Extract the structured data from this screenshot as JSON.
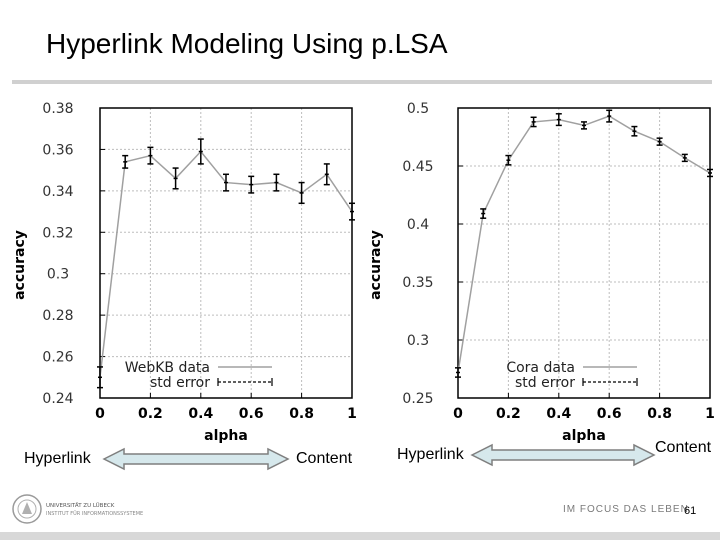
{
  "slide": {
    "title": "Hyperlink Modeling Using p.LSA",
    "page_number": "61",
    "footer_motto": "IM FOCUS DAS LEBEN",
    "logo_text_1": "UNIVERSITÄT ZU LÜBECK",
    "logo_text_2": "INSTITUT FÜR INFORMATIONSSYSTEME"
  },
  "arrows": [
    {
      "left_label": "Hyperlink",
      "right_label": "Content"
    },
    {
      "left_label": "Hyperlink",
      "right_label": "Content"
    }
  ],
  "colors": {
    "arrow_fill": "#d6e8ec",
    "arrow_stroke": "#7f7f7f",
    "grid": "#bdbdbd",
    "data_line": "#a0a0a0",
    "errbar": "#000000"
  },
  "chart_data": [
    {
      "type": "line",
      "xlabel": "alpha",
      "ylabel": "accuracy",
      "xlim": [
        0,
        1
      ],
      "ylim": [
        0.24,
        0.38
      ],
      "xticks": [
        0,
        0.2,
        0.4,
        0.6,
        0.8,
        1
      ],
      "yticks": [
        0.24,
        0.26,
        0.28,
        0.3,
        0.32,
        0.34,
        0.36,
        0.38
      ],
      "xticklabels": [
        "0",
        "0.2",
        "0.4",
        "0.6",
        "0.8",
        "1"
      ],
      "yticklabels": [
        "0.24",
        "0.26",
        "0.28",
        "0.3",
        "0.32",
        "0.34",
        "0.36",
        "0.38"
      ],
      "grid": true,
      "legend_position": "bottom-right",
      "series": [
        {
          "name": "WebKB data",
          "x": [
            0,
            0.1,
            0.2,
            0.3,
            0.4,
            0.5,
            0.6,
            0.7,
            0.8,
            0.9,
            1.0
          ],
          "y": [
            0.25,
            0.354,
            0.357,
            0.346,
            0.359,
            0.344,
            0.343,
            0.344,
            0.339,
            0.348,
            0.33
          ]
        },
        {
          "name": "std error",
          "x": [
            0,
            0.1,
            0.2,
            0.3,
            0.4,
            0.5,
            0.6,
            0.7,
            0.8,
            0.9,
            1.0
          ],
          "y": [
            0.25,
            0.354,
            0.357,
            0.346,
            0.359,
            0.344,
            0.343,
            0.344,
            0.339,
            0.348,
            0.33
          ],
          "err": [
            0.005,
            0.003,
            0.004,
            0.005,
            0.006,
            0.004,
            0.004,
            0.004,
            0.005,
            0.005,
            0.004
          ]
        }
      ]
    },
    {
      "type": "line",
      "xlabel": "alpha",
      "ylabel": "accuracy",
      "xlim": [
        0,
        1
      ],
      "ylim": [
        0.25,
        0.5
      ],
      "xticks": [
        0,
        0.2,
        0.4,
        0.6,
        0.8,
        1
      ],
      "yticks": [
        0.25,
        0.3,
        0.35,
        0.4,
        0.45,
        0.5
      ],
      "xticklabels": [
        "0",
        "0.2",
        "0.4",
        "0.6",
        "0.8",
        "1"
      ],
      "yticklabels": [
        "0.25",
        "0.3",
        "0.35",
        "0.4",
        "0.45",
        "0.5"
      ],
      "grid": true,
      "legend_position": "bottom-right",
      "series": [
        {
          "name": "Cora data",
          "x": [
            0,
            0.1,
            0.2,
            0.3,
            0.4,
            0.5,
            0.6,
            0.7,
            0.8,
            0.9,
            1.0
          ],
          "y": [
            0.272,
            0.409,
            0.455,
            0.488,
            0.49,
            0.485,
            0.493,
            0.48,
            0.471,
            0.457,
            0.444
          ]
        },
        {
          "name": "std error",
          "x": [
            0,
            0.1,
            0.2,
            0.3,
            0.4,
            0.5,
            0.6,
            0.7,
            0.8,
            0.9,
            1.0
          ],
          "y": [
            0.272,
            0.409,
            0.455,
            0.488,
            0.49,
            0.485,
            0.493,
            0.48,
            0.471,
            0.457,
            0.444
          ],
          "err": [
            0.004,
            0.004,
            0.004,
            0.004,
            0.005,
            0.003,
            0.005,
            0.004,
            0.003,
            0.003,
            0.003
          ]
        }
      ]
    }
  ]
}
